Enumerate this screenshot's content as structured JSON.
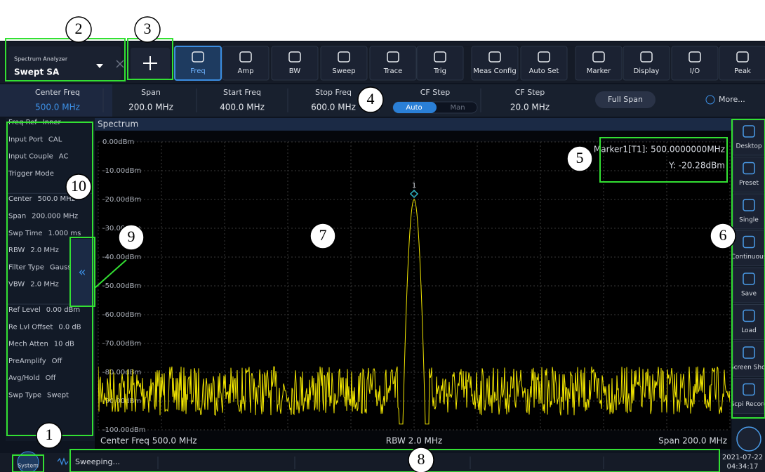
{
  "mode": {
    "title": "Spectrum Analyzer",
    "name": "Swept SA"
  },
  "toolbar": [
    "Freq",
    "Amp",
    "BW",
    "Sweep",
    "Trace",
    "Trig",
    "Meas Config",
    "Auto Set",
    "Marker",
    "Display",
    "I/O",
    "Peak"
  ],
  "params": [
    {
      "label": "Center Freq",
      "value": "500.0 MHz"
    },
    {
      "label": "Span",
      "value": "200.0 MHz"
    },
    {
      "label": "Start Freq",
      "value": "400.0 MHz"
    },
    {
      "label": "Stop Freq",
      "value": "600.0 MHz"
    },
    {
      "label": "CF Step",
      "options": [
        "Auto",
        "Man"
      ]
    },
    {
      "label": "CF Step",
      "value": "20.0 MHz"
    }
  ],
  "full_span": "Full Span",
  "more": "More...",
  "left_panel": [
    {
      "label": "Freq Ref",
      "value": "Inner"
    },
    {
      "label": "Input Port",
      "value": "CAL"
    },
    {
      "label": "Input Couple",
      "value": "AC"
    },
    {
      "label": "Trigger Mode"
    },
    {
      "label": "Center",
      "value": "500.0 MHz"
    },
    {
      "label": "Span",
      "value": "200.000 MHz"
    },
    {
      "label": "Swp Time",
      "value": "1.000 ms"
    },
    {
      "label": "RBW",
      "value": "2.0 MHz"
    },
    {
      "label": "Filter Type",
      "value": "Gaussian"
    },
    {
      "label": "VBW",
      "value": "2.0 MHz"
    },
    {
      "label": "Ref Level",
      "value": "0.00 dBm"
    },
    {
      "label": "Re Lvl Offset",
      "value": "0.0 dB"
    },
    {
      "label": "Mech Atten",
      "value": "10 dB"
    },
    {
      "label": "PreAmplify",
      "value": "Off"
    },
    {
      "label": "Avg/Hold",
      "value": "Off"
    },
    {
      "label": "Swp Type",
      "value": "Swept"
    }
  ],
  "collapse": "«",
  "plot": {
    "title": "Spectrum",
    "y_labels": [
      "0.00dBm",
      "-10.00dBm",
      "-20.00dBm",
      "-30.00dBm",
      "-40.00dBm",
      "-50.00dBm",
      "-60.00dBm",
      "-70.00dBm",
      "-80.00dBm",
      "-90.00dBm",
      "-100.00dBm"
    ],
    "marker": {
      "label": "1",
      "line1": "Marker1[T1]:  500.0000000MHz",
      "line2": "Y:  -20.28dBm"
    },
    "footer": {
      "left": "Center Freq 500.0 MHz",
      "center": "RBW 2.0 MHz",
      "right": "Span 200.0 MHz"
    }
  },
  "side_buttons": [
    "Desktop",
    "Preset",
    "Single",
    "Continuous",
    "Save",
    "Load",
    "Screen Shot",
    "Scpi Record"
  ],
  "status": {
    "system": "System",
    "text": "Sweeping...",
    "date": "2021-07-22",
    "time": "04:34:17"
  },
  "annotations": [
    "1",
    "2",
    "3",
    "4",
    "5",
    "6",
    "7",
    "8",
    "9",
    "10"
  ]
}
